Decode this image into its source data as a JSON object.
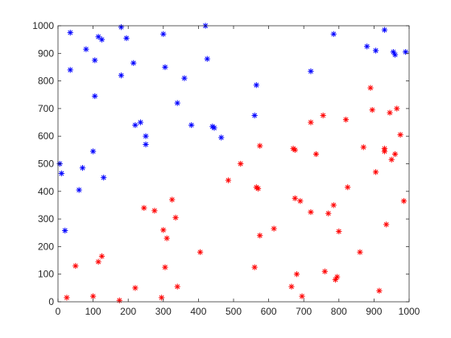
{
  "chart_data": {
    "type": "scatter",
    "title": "",
    "xlabel": "",
    "ylabel": "",
    "xlim": [
      0,
      1000
    ],
    "ylim": [
      0,
      1000
    ],
    "xticks": [
      "0",
      "100",
      "200",
      "300",
      "400",
      "500",
      "600",
      "700",
      "800",
      "900",
      "1000"
    ],
    "yticks": [
      "0",
      "100",
      "200",
      "300",
      "400",
      "500",
      "600",
      "700",
      "800",
      "900",
      "1000"
    ],
    "grid": false,
    "marker": "asterisk",
    "series": [
      {
        "color": "#0000ff",
        "points": [
          [
            5,
            500
          ],
          [
            10,
            465
          ],
          [
            20,
            258
          ],
          [
            35,
            975
          ],
          [
            35,
            840
          ],
          [
            60,
            405
          ],
          [
            70,
            485
          ],
          [
            80,
            915
          ],
          [
            100,
            545
          ],
          [
            105,
            875
          ],
          [
            105,
            745
          ],
          [
            115,
            960
          ],
          [
            125,
            950
          ],
          [
            130,
            450
          ],
          [
            180,
            995
          ],
          [
            180,
            820
          ],
          [
            195,
            955
          ],
          [
            215,
            865
          ],
          [
            220,
            640
          ],
          [
            235,
            650
          ],
          [
            250,
            600
          ],
          [
            250,
            570
          ],
          [
            300,
            970
          ],
          [
            305,
            850
          ],
          [
            340,
            720
          ],
          [
            360,
            810
          ],
          [
            380,
            640
          ],
          [
            420,
            1000
          ],
          [
            425,
            880
          ],
          [
            440,
            635
          ],
          [
            445,
            630
          ],
          [
            465,
            595
          ],
          [
            560,
            675
          ],
          [
            565,
            785
          ],
          [
            720,
            835
          ],
          [
            785,
            970
          ],
          [
            880,
            925
          ],
          [
            905,
            910
          ],
          [
            930,
            985
          ],
          [
            955,
            905
          ],
          [
            960,
            895
          ],
          [
            990,
            905
          ]
        ]
      },
      {
        "color": "#ff0000",
        "points": [
          [
            25,
            15
          ],
          [
            50,
            130
          ],
          [
            100,
            20
          ],
          [
            115,
            145
          ],
          [
            125,
            165
          ],
          [
            175,
            5
          ],
          [
            220,
            50
          ],
          [
            245,
            340
          ],
          [
            275,
            330
          ],
          [
            295,
            15
          ],
          [
            300,
            260
          ],
          [
            305,
            125
          ],
          [
            310,
            230
          ],
          [
            325,
            370
          ],
          [
            335,
            305
          ],
          [
            340,
            55
          ],
          [
            405,
            180
          ],
          [
            485,
            440
          ],
          [
            520,
            500
          ],
          [
            560,
            125
          ],
          [
            565,
            415
          ],
          [
            570,
            410
          ],
          [
            575,
            565
          ],
          [
            575,
            240
          ],
          [
            615,
            265
          ],
          [
            665,
            55
          ],
          [
            670,
            555
          ],
          [
            675,
            550
          ],
          [
            675,
            375
          ],
          [
            680,
            100
          ],
          [
            690,
            365
          ],
          [
            695,
            20
          ],
          [
            720,
            650
          ],
          [
            720,
            325
          ],
          [
            735,
            535
          ],
          [
            755,
            675
          ],
          [
            760,
            110
          ],
          [
            770,
            320
          ],
          [
            785,
            350
          ],
          [
            790,
            80
          ],
          [
            795,
            90
          ],
          [
            800,
            255
          ],
          [
            820,
            660
          ],
          [
            825,
            415
          ],
          [
            860,
            180
          ],
          [
            870,
            560
          ],
          [
            890,
            775
          ],
          [
            895,
            695
          ],
          [
            905,
            470
          ],
          [
            915,
            40
          ],
          [
            930,
            555
          ],
          [
            930,
            545
          ],
          [
            935,
            280
          ],
          [
            945,
            685
          ],
          [
            950,
            515
          ],
          [
            960,
            535
          ],
          [
            965,
            700
          ],
          [
            975,
            605
          ],
          [
            985,
            365
          ]
        ]
      }
    ]
  }
}
